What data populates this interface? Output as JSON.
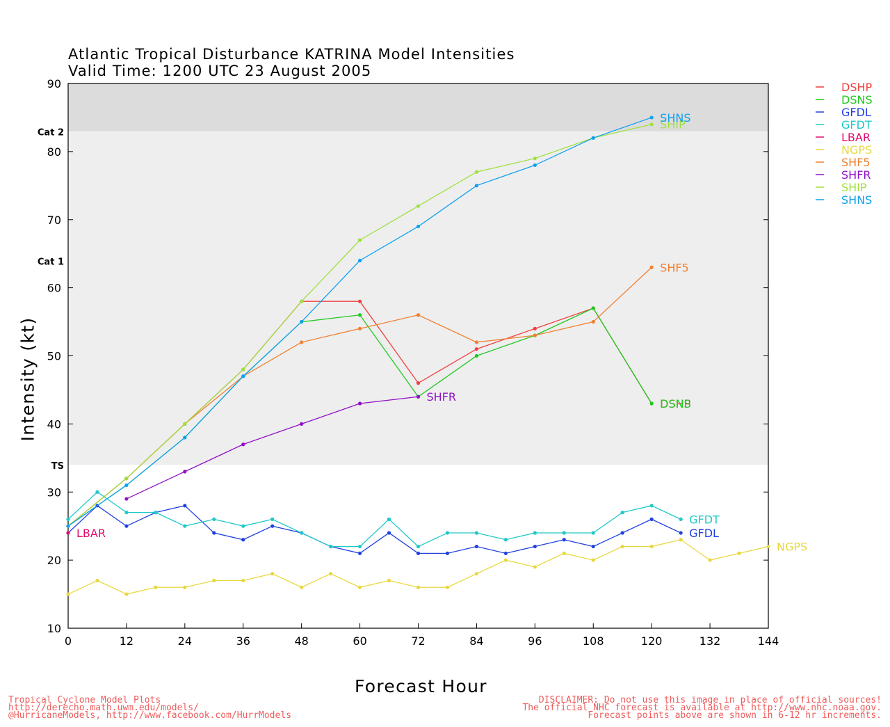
{
  "title": {
    "line1": "Atlantic Tropical Disturbance KATRINA Model Intensities",
    "line2": "Valid Time: 1200 UTC 23 August 2005"
  },
  "footer": {
    "left": [
      "Tropical Cyclone Model Plots",
      "http://derecho.math.uwm.edu/models/",
      "@HurricaneModels, http://www.facebook.com/HurrModels"
    ],
    "right": [
      "DISCLAIMER: Do not use this image in place of official sources!",
      "The official NHC forecast is available at http://www.nhc.noaa.gov.",
      "Forecast points above are shown in 6-12 hr increments."
    ]
  },
  "chart_data": {
    "type": "line",
    "xlabel": "Forecast Hour",
    "ylabel": "Intensity (kt)",
    "xlim": [
      0,
      144
    ],
    "ylim": [
      10,
      90
    ],
    "xticks": [
      0,
      12,
      24,
      36,
      48,
      60,
      72,
      84,
      96,
      108,
      120,
      132,
      144
    ],
    "yticks": [
      10,
      20,
      30,
      40,
      50,
      60,
      70,
      80,
      90
    ],
    "legend_position": "right-top",
    "bands": [
      {
        "label": "TS",
        "from": 34,
        "to": 64,
        "color": "#eeeeee"
      },
      {
        "label": "Cat 1",
        "from": 64,
        "to": 83,
        "color": "#eeeeee"
      },
      {
        "label": "Cat 2",
        "from": 83,
        "to": 90,
        "color": "#dcdcdc"
      }
    ],
    "series": [
      {
        "name": "DSHP",
        "color": "#f04040",
        "x": [
          0,
          12,
          24,
          36,
          48,
          60,
          72,
          84,
          96,
          108,
          120
        ],
        "y": [
          25,
          32,
          40,
          48,
          58,
          58,
          46,
          51,
          54,
          57,
          43
        ]
      },
      {
        "name": "DSNS",
        "color": "#20c820",
        "x": [
          0,
          12,
          24,
          36,
          48,
          60,
          72,
          84,
          96,
          108,
          120
        ],
        "y": [
          25,
          31,
          38,
          47,
          55,
          56,
          44,
          50,
          53,
          57,
          43
        ]
      },
      {
        "name": "GFDL",
        "color": "#2040e0",
        "x": [
          0,
          6,
          12,
          18,
          24,
          30,
          36,
          42,
          48,
          54,
          60,
          66,
          72,
          78,
          84,
          90,
          96,
          102,
          108,
          114,
          120,
          126
        ],
        "y": [
          24,
          28,
          25,
          27,
          28,
          24,
          23,
          25,
          24,
          22,
          21,
          24,
          21,
          21,
          22,
          21,
          22,
          23,
          22,
          24,
          26,
          24
        ]
      },
      {
        "name": "GFDT",
        "color": "#20c8c8",
        "x": [
          0,
          6,
          12,
          18,
          24,
          30,
          36,
          42,
          48,
          54,
          60,
          66,
          72,
          78,
          84,
          90,
          96,
          102,
          108,
          114,
          120,
          126
        ],
        "y": [
          26,
          30,
          27,
          27,
          25,
          26,
          25,
          26,
          24,
          22,
          22,
          26,
          22,
          24,
          24,
          23,
          24,
          24,
          24,
          27,
          28,
          26
        ]
      },
      {
        "name": "LBAR",
        "color": "#e0106e",
        "x": [
          0
        ],
        "y": [
          24
        ]
      },
      {
        "name": "NGPS",
        "color": "#e8d840",
        "x": [
          0,
          6,
          12,
          18,
          24,
          30,
          36,
          42,
          48,
          54,
          60,
          66,
          72,
          78,
          84,
          90,
          96,
          102,
          108,
          114,
          120,
          126,
          132,
          138,
          144
        ],
        "y": [
          15,
          17,
          15,
          16,
          16,
          17,
          17,
          18,
          16,
          18,
          16,
          17,
          16,
          16,
          18,
          20,
          19,
          21,
          20,
          22,
          22,
          23,
          20,
          21,
          22
        ]
      },
      {
        "name": "SHF5",
        "color": "#f08030",
        "x": [
          0,
          12,
          24,
          36,
          48,
          60,
          72,
          84,
          96,
          108,
          120
        ],
        "y": [
          25,
          32,
          40,
          47,
          52,
          54,
          56,
          52,
          53,
          55,
          63
        ]
      },
      {
        "name": "SHFR",
        "color": "#9010c8",
        "x": [
          12,
          24,
          36,
          48,
          60,
          72
        ],
        "y": [
          29,
          33,
          37,
          40,
          43,
          44
        ]
      },
      {
        "name": "SHIP",
        "color": "#a0e040",
        "x": [
          0,
          12,
          24,
          36,
          48,
          60,
          72,
          84,
          96,
          108,
          120
        ],
        "y": [
          25,
          32,
          40,
          48,
          58,
          67,
          72,
          77,
          79,
          82,
          84
        ]
      },
      {
        "name": "SHNS",
        "color": "#10a0f0",
        "x": [
          0,
          12,
          24,
          36,
          48,
          60,
          72,
          84,
          96,
          108,
          120
        ],
        "y": [
          25,
          31,
          38,
          47,
          55,
          64,
          69,
          75,
          78,
          82,
          85
        ]
      }
    ]
  }
}
